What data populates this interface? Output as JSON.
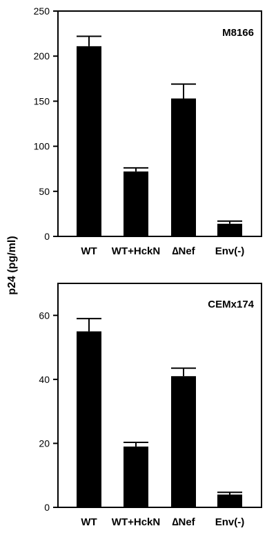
{
  "ylabel": "p24  (pg/ml)",
  "colors": {
    "bar": "#000000",
    "frame": "#000000",
    "background": "#ffffff"
  },
  "chart_data": [
    {
      "type": "bar",
      "title": "M8166",
      "categories": [
        "WT",
        "WT+HckN",
        "∆Nef",
        "Env(-)"
      ],
      "values": [
        211,
        72,
        153,
        14
      ],
      "error": [
        11,
        4,
        16,
        3
      ],
      "ylim": [
        0,
        250
      ],
      "yticks": [
        0,
        50,
        100,
        150,
        200,
        250
      ],
      "grid": false,
      "legend": "none"
    },
    {
      "type": "bar",
      "title": "CEMx174",
      "categories": [
        "WT",
        "WT+HckN",
        "∆Nef",
        "Env(-)"
      ],
      "values": [
        55,
        19,
        41,
        4
      ],
      "error": [
        4,
        1.3,
        2.5,
        0.7
      ],
      "ylim": [
        0,
        70
      ],
      "yticks": [
        0,
        20,
        40,
        60
      ],
      "grid": false,
      "legend": "none"
    }
  ]
}
